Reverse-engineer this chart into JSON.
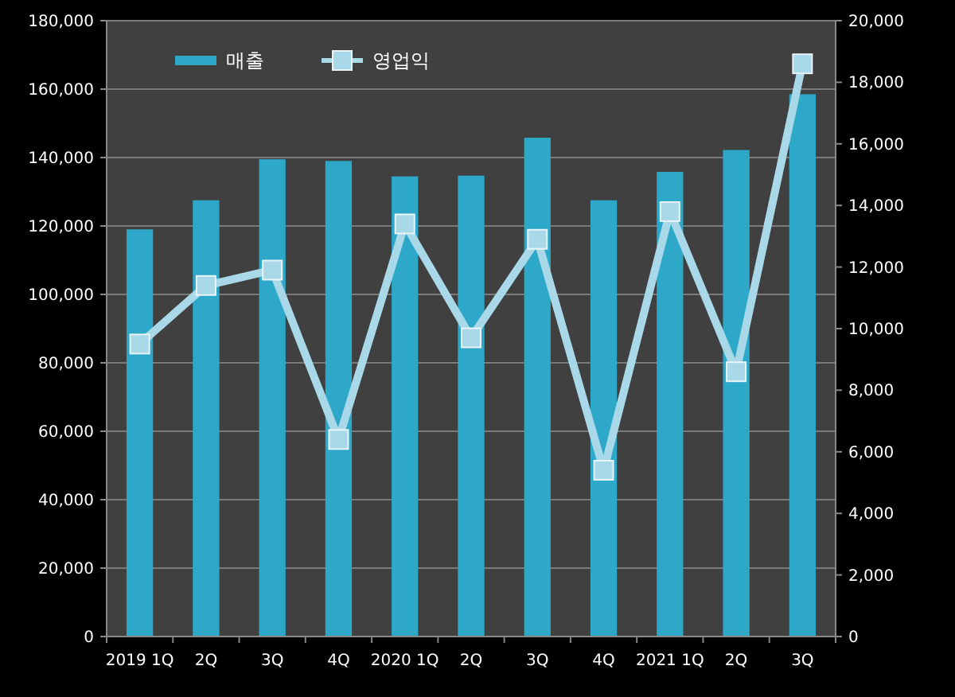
{
  "chart_data": {
    "type": "bar",
    "categories": [
      "2019 1Q",
      "2Q",
      "3Q",
      "4Q",
      "2020 1Q",
      "2Q",
      "3Q",
      "4Q",
      "2021 1Q",
      "2Q",
      "3Q"
    ],
    "series": [
      {
        "name": "매출",
        "color": "#2ea8c8",
        "values": [
          119000,
          127500,
          139500,
          139000,
          134500,
          134700,
          145800,
          127500,
          135800,
          142200,
          158500
        ]
      },
      {
        "name": "영업익",
        "type": "line",
        "axis": "y2",
        "color": "#a9d8e8",
        "marker": "square",
        "values": [
          9500,
          11400,
          11900,
          6400,
          13400,
          9700,
          12900,
          5400,
          13800,
          8600,
          18600
        ]
      }
    ],
    "ylim": [
      0,
      180000
    ],
    "yticks": [
      {
        "value": 0,
        "label": "0"
      },
      {
        "value": 20000,
        "label": "20,000"
      },
      {
        "value": 40000,
        "label": "40,000"
      },
      {
        "value": 60000,
        "label": "60,000"
      },
      {
        "value": 80000,
        "label": "80,000"
      },
      {
        "value": 100000,
        "label": "100,000"
      },
      {
        "value": 120000,
        "label": "120,000"
      },
      {
        "value": 140000,
        "label": "140,000"
      },
      {
        "value": 160000,
        "label": "160,000"
      },
      {
        "value": 180000,
        "label": "180,000"
      }
    ],
    "y2lim": [
      0,
      20000
    ],
    "y2ticks": [
      {
        "value": 0,
        "label": "0"
      },
      {
        "value": 2000,
        "label": "2,000"
      },
      {
        "value": 4000,
        "label": "4,000"
      },
      {
        "value": 6000,
        "label": "6,000"
      },
      {
        "value": 8000,
        "label": "8,000"
      },
      {
        "value": 10000,
        "label": "10,000"
      },
      {
        "value": 12000,
        "label": "12,000"
      },
      {
        "value": 14000,
        "label": "14,000"
      },
      {
        "value": 16000,
        "label": "16,000"
      },
      {
        "value": 18000,
        "label": "18,000"
      },
      {
        "value": 20000,
        "label": "20,000"
      }
    ],
    "grid": "y",
    "legend": "top left"
  }
}
